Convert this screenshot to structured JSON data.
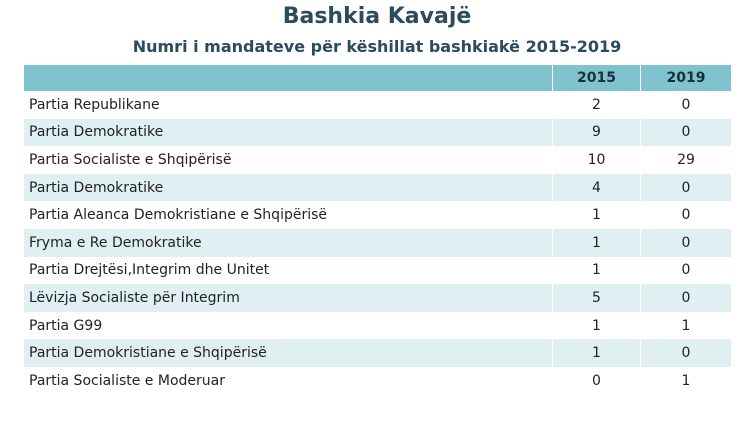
{
  "title": "Bashkia Kavajë",
  "subtitle": "Numri i mandateve për këshillat bashkiakë 2015-2019",
  "columns": [
    "",
    "2015",
    "2019"
  ],
  "colors": {
    "header_fill": "#7fc3ce",
    "alt_row_fill": "#e0eff2",
    "title_color": "#2c4b5c"
  },
  "rows": [
    {
      "party": "Partia Republikane",
      "y2015": "2",
      "y2019": "0"
    },
    {
      "party": "Partia Demokratike",
      "y2015": "9",
      "y2019": "0"
    },
    {
      "party": "Partia Socialiste e Shqipërisë",
      "y2015": "10",
      "y2019": "29"
    },
    {
      "party": "Partia Demokratike",
      "y2015": "4",
      "y2019": "0"
    },
    {
      "party": "Partia Aleanca Demokristiane e Shqipërisë",
      "y2015": "1",
      "y2019": "0"
    },
    {
      "party": "Fryma e Re Demokratike",
      "y2015": "1",
      "y2019": "0"
    },
    {
      "party": "Partia Drejtësi,Integrim dhe Unitet",
      "y2015": "1",
      "y2019": "0"
    },
    {
      "party": "Lëvizja Socialiste për Integrim",
      "y2015": "5",
      "y2019": "0"
    },
    {
      "party": "Partia G99",
      "y2015": "1",
      "y2019": "1"
    },
    {
      "party": "Partia Demokristiane e Shqipërisë",
      "y2015": "1",
      "y2019": "0"
    },
    {
      "party": "Partia Socialiste e Moderuar",
      "y2015": "0",
      "y2019": "1"
    }
  ],
  "chart_data": {
    "type": "table",
    "title": "Bashkia Kavajë",
    "subtitle": "Numri i mandateve për këshillat bashkiakë 2015-2019",
    "columns": [
      "2015",
      "2019"
    ],
    "categories": [
      "Partia Republikane",
      "Partia Demokratike",
      "Partia Socialiste e Shqipërisë",
      "Partia Demokratike",
      "Partia Aleanca Demokristiane e Shqipërisë",
      "Fryma e Re Demokratike",
      "Partia Drejtësi,Integrim dhe Unitet",
      "Lëvizja Socialiste për Integrim",
      "Partia G99",
      "Partia Demokristiane e Shqipërisë",
      "Partia Socialiste e Moderuar"
    ],
    "series": [
      {
        "name": "2015",
        "values": [
          2,
          9,
          10,
          4,
          1,
          1,
          1,
          5,
          1,
          1,
          0
        ]
      },
      {
        "name": "2019",
        "values": [
          0,
          0,
          29,
          0,
          0,
          0,
          0,
          0,
          1,
          0,
          1
        ]
      }
    ]
  }
}
